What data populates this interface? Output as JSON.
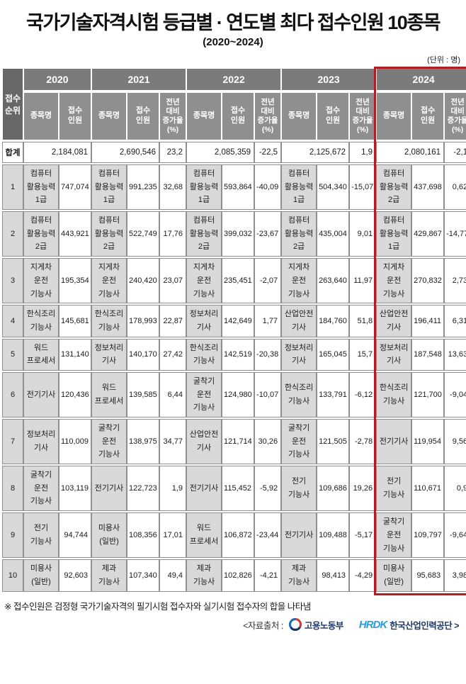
{
  "title": "국가기술자격시험 등급별 · 연도별 최다 접수인원 10종목",
  "subtitle": "(2020~2024)",
  "unit_label": "(단위 : 명)",
  "chart_data": {
    "type": "table",
    "title": "국가기술자격시험 등급별 · 연도별 최다 접수인원 10종목 (2020~2024)",
    "unit": "명",
    "years": [
      "2020",
      "2021",
      "2022",
      "2023",
      "2024"
    ],
    "rank_header": "접수\n순위",
    "col_headers": {
      "subject": "종목명",
      "applicants": "접수\n인원",
      "growth": "전년\n대비\n증가율\n(%)"
    },
    "total_label": "합계",
    "totals": {
      "y2020": {
        "applicants": "2,184,081"
      },
      "y2021": {
        "applicants": "2,690,546",
        "growth": "23,2"
      },
      "y2022": {
        "applicants": "2,085,359",
        "growth": "-22,5"
      },
      "y2023": {
        "applicants": "2,125,672",
        "growth": "1,9"
      },
      "y2024": {
        "applicants": "2,080,161",
        "growth": "-2,1"
      }
    },
    "rows": [
      {
        "rank": "1",
        "y2020": {
          "subject": "컴퓨터\n활용능력\n1급",
          "applicants": "747,074"
        },
        "y2021": {
          "subject": "컴퓨터\n활용능력\n1급",
          "applicants": "991,235",
          "growth": "32,68"
        },
        "y2022": {
          "subject": "컴퓨터\n활용능력\n1급",
          "applicants": "593,864",
          "growth": "-40,09"
        },
        "y2023": {
          "subject": "컴퓨터\n활용능력\n1급",
          "applicants": "504,340",
          "growth": "-15,07"
        },
        "y2024": {
          "subject": "컴퓨터\n활용능력\n2급",
          "applicants": "437,698",
          "growth": "0,62"
        }
      },
      {
        "rank": "2",
        "y2020": {
          "subject": "컴퓨터\n활용능력\n2급",
          "applicants": "443,921"
        },
        "y2021": {
          "subject": "컴퓨터\n활용능력\n2급",
          "applicants": "522,749",
          "growth": "17,76"
        },
        "y2022": {
          "subject": "컴퓨터\n활용능력\n2급",
          "applicants": "399,032",
          "growth": "-23,67"
        },
        "y2023": {
          "subject": "컴퓨터\n활용능력\n2급",
          "applicants": "435,004",
          "growth": "9,01"
        },
        "y2024": {
          "subject": "컴퓨터\n활용능력\n1급",
          "applicants": "429,867",
          "growth": "-14,77"
        }
      },
      {
        "rank": "3",
        "y2020": {
          "subject": "지게차\n운전\n기능사",
          "applicants": "195,354"
        },
        "y2021": {
          "subject": "지게차\n운전\n기능사",
          "applicants": "240,420",
          "growth": "23,07"
        },
        "y2022": {
          "subject": "지게차\n운전\n기능사",
          "applicants": "235,451",
          "growth": "-2,07"
        },
        "y2023": {
          "subject": "지게차\n운전\n기능사",
          "applicants": "263,640",
          "growth": "11,97"
        },
        "y2024": {
          "subject": "지게차\n운전\n기능사",
          "applicants": "270,832",
          "growth": "2,73"
        }
      },
      {
        "rank": "4",
        "y2020": {
          "subject": "한식조리\n기능사",
          "applicants": "145,681"
        },
        "y2021": {
          "subject": "한식조리\n기능사",
          "applicants": "178,993",
          "growth": "22,87"
        },
        "y2022": {
          "subject": "정보처리\n기사",
          "applicants": "142,649",
          "growth": "1,77"
        },
        "y2023": {
          "subject": "산업안전\n기사",
          "applicants": "184,760",
          "growth": "51,8"
        },
        "y2024": {
          "subject": "산업안전\n기사",
          "applicants": "196,411",
          "growth": "6,31"
        }
      },
      {
        "rank": "5",
        "y2020": {
          "subject": "워드\n프로세서",
          "applicants": "131,140"
        },
        "y2021": {
          "subject": "정보처리\n기사",
          "applicants": "140,170",
          "growth": "27,42"
        },
        "y2022": {
          "subject": "한식조리\n기능사",
          "applicants": "142,519",
          "growth": "-20,38"
        },
        "y2023": {
          "subject": "정보처리\n기사",
          "applicants": "165,045",
          "growth": "15,7"
        },
        "y2024": {
          "subject": "정보처리\n기사",
          "applicants": "187,548",
          "growth": "13,63"
        }
      },
      {
        "rank": "6",
        "y2020": {
          "subject": "전기기사",
          "applicants": "120,436"
        },
        "y2021": {
          "subject": "워드\n프로세서",
          "applicants": "139,585",
          "growth": "6,44"
        },
        "y2022": {
          "subject": "굴착기\n운전\n기능사",
          "applicants": "124,980",
          "growth": "-10,07"
        },
        "y2023": {
          "subject": "한식조리\n기능사",
          "applicants": "133,791",
          "growth": "-6,12"
        },
        "y2024": {
          "subject": "한식조리\n기능사",
          "applicants": "121,700",
          "growth": "-9,04"
        }
      },
      {
        "rank": "7",
        "y2020": {
          "subject": "정보처리\n기사",
          "applicants": "110,009"
        },
        "y2021": {
          "subject": "굴착기\n운전\n기능사",
          "applicants": "138,975",
          "growth": "34,77"
        },
        "y2022": {
          "subject": "산업안전\n기사",
          "applicants": "121,714",
          "growth": "30,26"
        },
        "y2023": {
          "subject": "굴착기\n운전\n기능사",
          "applicants": "121,505",
          "growth": "-2,78"
        },
        "y2024": {
          "subject": "전기기사",
          "applicants": "119,954",
          "growth": "9,56"
        }
      },
      {
        "rank": "8",
        "y2020": {
          "subject": "굴착기\n운전\n기능사",
          "applicants": "103,119"
        },
        "y2021": {
          "subject": "전기기사",
          "applicants": "122,723",
          "growth": "1,9"
        },
        "y2022": {
          "subject": "전기기사",
          "applicants": "115,452",
          "growth": "-5,92"
        },
        "y2023": {
          "subject": "전기\n기능사",
          "applicants": "109,686",
          "growth": "19,26"
        },
        "y2024": {
          "subject": "전기\n기능사",
          "applicants": "110,671",
          "growth": "0,9"
        }
      },
      {
        "rank": "9",
        "y2020": {
          "subject": "전기\n기능사",
          "applicants": "94,744"
        },
        "y2021": {
          "subject": "미용사\n(일반)",
          "applicants": "108,356",
          "growth": "17,01"
        },
        "y2022": {
          "subject": "워드\n프로세서",
          "applicants": "106,872",
          "growth": "-23,44"
        },
        "y2023": {
          "subject": "전기기사",
          "applicants": "109,488",
          "growth": "-5,17"
        },
        "y2024": {
          "subject": "굴착기\n운전\n기능사",
          "applicants": "109,797",
          "growth": "-9,64"
        }
      },
      {
        "rank": "10",
        "y2020": {
          "subject": "미용사\n(일반)",
          "applicants": "92,603"
        },
        "y2021": {
          "subject": "제과\n기능사",
          "applicants": "107,340",
          "growth": "49,4"
        },
        "y2022": {
          "subject": "제과\n기능사",
          "applicants": "102,826",
          "growth": "-4,21"
        },
        "y2023": {
          "subject": "제과\n기능사",
          "applicants": "98,413",
          "growth": "-4,29"
        },
        "y2024": {
          "subject": "미용사\n(일반)",
          "applicants": "95,683",
          "growth": "3,98"
        }
      }
    ],
    "highlight": {
      "year": "2024",
      "border_color": "#b01d23"
    }
  },
  "footnote": "※ 접수인원은 검정형 국가기술자격의 필기시험 접수자와 실기시험 접수자의 합을 나타냄",
  "source": {
    "prefix": "<자료출처 :",
    "moel_name": "고용노동부",
    "hrdk_logo_text": "HRDK",
    "hrdk_name": "한국산업인력공단 >"
  },
  "colors": {
    "header_year_bg": "#7b7b7b",
    "header_sub_bg": "#8f8f8f",
    "rank_header_bg": "#676767",
    "subject_cell_bg": "#d9d9d9",
    "highlight_red": "#b01d23",
    "hrdk_blue": "#2b9cd8",
    "navy_text": "#1f3864"
  }
}
